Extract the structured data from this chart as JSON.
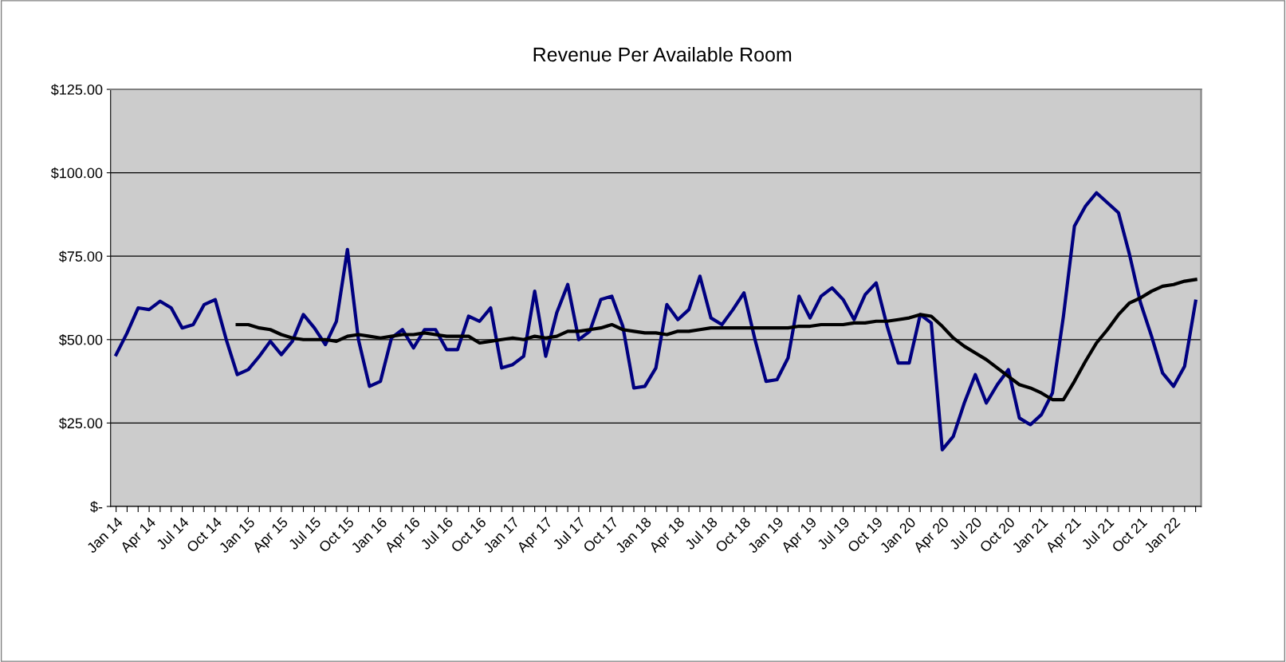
{
  "chart_data": {
    "type": "line",
    "title": "Revenue Per Available Room",
    "categories": [
      "Jan 14",
      null,
      null,
      "Apr 14",
      null,
      null,
      "Jul 14",
      null,
      null,
      "Oct 14",
      null,
      null,
      "Jan 15",
      null,
      null,
      "Apr 15",
      null,
      null,
      "Jul 15",
      null,
      null,
      "Oct 15",
      null,
      null,
      "Jan 16",
      null,
      null,
      "Apr 16",
      null,
      null,
      "Jul 16",
      null,
      null,
      "Oct 16",
      null,
      null,
      "Jan 17",
      null,
      null,
      "Apr 17",
      null,
      null,
      "Jul 17",
      null,
      null,
      "Oct 17",
      null,
      null,
      "Jan 18",
      null,
      null,
      "Apr 18",
      null,
      null,
      "Jul 18",
      null,
      null,
      "Oct 18",
      null,
      null,
      "Jan 19",
      null,
      null,
      "Apr 19",
      null,
      null,
      "Jul 19",
      null,
      null,
      "Oct 19",
      null,
      null,
      "Jan 20",
      null,
      null,
      "Apr 20",
      null,
      null,
      "Jul 20",
      null,
      null,
      "Oct 20",
      null,
      null,
      "Jan 21",
      null,
      null,
      "Apr 21",
      null,
      null,
      "Jul 21",
      null,
      null,
      "Oct 21",
      null,
      null,
      "Jan 22",
      null,
      null
    ],
    "series": [
      {
        "color": "#000080",
        "values": [
          45.5,
          52,
          59.5,
          59,
          61.5,
          59.5,
          53.5,
          54.5,
          60.5,
          62,
          50,
          39.5,
          41,
          45,
          49.5,
          45.5,
          49.5,
          57.5,
          53.5,
          48.5,
          55.5,
          77,
          50,
          36,
          37.5,
          50.5,
          53,
          47.5,
          53,
          53,
          47,
          47,
          57,
          55.5,
          59.5,
          41.5,
          42.5,
          45,
          64.5,
          45,
          58,
          66.5,
          50,
          52.5,
          62,
          63,
          54,
          35.5,
          36,
          41.5,
          60.5,
          56,
          59,
          69,
          56.5,
          54.5,
          59,
          64,
          50,
          37.5,
          38,
          44.5,
          63,
          56.5,
          63,
          65.5,
          62,
          56,
          63.5,
          67,
          54,
          43,
          43,
          57.5,
          55,
          17,
          21,
          31,
          39.5,
          31,
          36.5,
          41,
          26.5,
          24.5,
          27.5,
          34,
          57,
          84,
          90,
          94,
          91,
          88,
          75.5,
          61,
          51,
          40,
          36,
          42,
          61.5
        ]
      },
      {
        "color": "#000000",
        "values": [
          null,
          null,
          null,
          null,
          null,
          null,
          null,
          null,
          null,
          null,
          null,
          54.5,
          54.5,
          53.5,
          53,
          51.5,
          50.5,
          50,
          50,
          50,
          49.5,
          51,
          51.5,
          51,
          50.5,
          51,
          51.5,
          51.5,
          52,
          51.5,
          51,
          51,
          51,
          49,
          49.5,
          50,
          50.5,
          50,
          51,
          50.5,
          51,
          52.5,
          52.5,
          53,
          53.5,
          54.5,
          53,
          52.5,
          52,
          52,
          51.5,
          52.5,
          52.5,
          53,
          53.5,
          53.5,
          53.5,
          53.5,
          53.5,
          53.5,
          53.5,
          53.5,
          54,
          54,
          54.5,
          54.5,
          54.5,
          55,
          55,
          55.5,
          55.5,
          56,
          56.5,
          57.5,
          57,
          54,
          50.5,
          48,
          46,
          44,
          41.5,
          39,
          36.5,
          35.5,
          34,
          32,
          32,
          37.5,
          43.5,
          49,
          53,
          57.5,
          61,
          62.5,
          64.5,
          66,
          66.5,
          67.5,
          68
        ]
      }
    ],
    "ylim": [
      0,
      125
    ],
    "yticks": [
      {
        "value": 0,
        "label": "$-"
      },
      {
        "value": 25,
        "label": "$25.00"
      },
      {
        "value": 50,
        "label": "$50.00"
      },
      {
        "value": 75,
        "label": "$75.00"
      },
      {
        "value": 100,
        "label": "$100.00"
      },
      {
        "value": 125,
        "label": "$125.00"
      }
    ],
    "grid": "y",
    "marker": "none",
    "line_style": "solid"
  }
}
